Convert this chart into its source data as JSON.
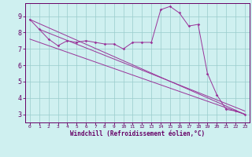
{
  "xlabel": "Windchill (Refroidissement éolien,°C)",
  "bg_color": "#cff0f0",
  "line_color": "#993399",
  "grid_color": "#99cccc",
  "x_values": [
    0,
    1,
    2,
    3,
    4,
    5,
    6,
    7,
    8,
    9,
    10,
    11,
    12,
    13,
    14,
    15,
    16,
    17,
    18,
    19,
    20,
    21,
    22,
    23
  ],
  "series1": [
    8.8,
    8.2,
    7.6,
    7.2,
    7.5,
    7.4,
    7.5,
    7.4,
    7.3,
    7.3,
    7.0,
    7.4,
    7.4,
    7.4,
    9.4,
    9.6,
    9.2,
    8.4,
    8.5,
    5.5,
    4.2,
    3.3,
    3.2,
    3.0
  ],
  "reg_lines": [
    {
      "x": [
        0,
        23
      ],
      "y": [
        8.8,
        3.0
      ]
    },
    {
      "x": [
        0,
        23
      ],
      "y": [
        7.6,
        3.0
      ]
    },
    {
      "x": [
        1,
        23
      ],
      "y": [
        8.2,
        3.2
      ]
    }
  ],
  "ylim": [
    2.5,
    9.8
  ],
  "xlim": [
    -0.5,
    23.5
  ],
  "yticks": [
    3,
    4,
    5,
    6,
    7,
    8,
    9
  ],
  "xticks": [
    0,
    1,
    2,
    3,
    4,
    5,
    6,
    7,
    8,
    9,
    10,
    11,
    12,
    13,
    14,
    15,
    16,
    17,
    18,
    19,
    20,
    21,
    22,
    23
  ],
  "tick_color": "#660066",
  "spine_color": "#660066",
  "xlabel_fontsize": 5.5,
  "ytick_fontsize": 6.0,
  "xtick_fontsize": 4.5
}
